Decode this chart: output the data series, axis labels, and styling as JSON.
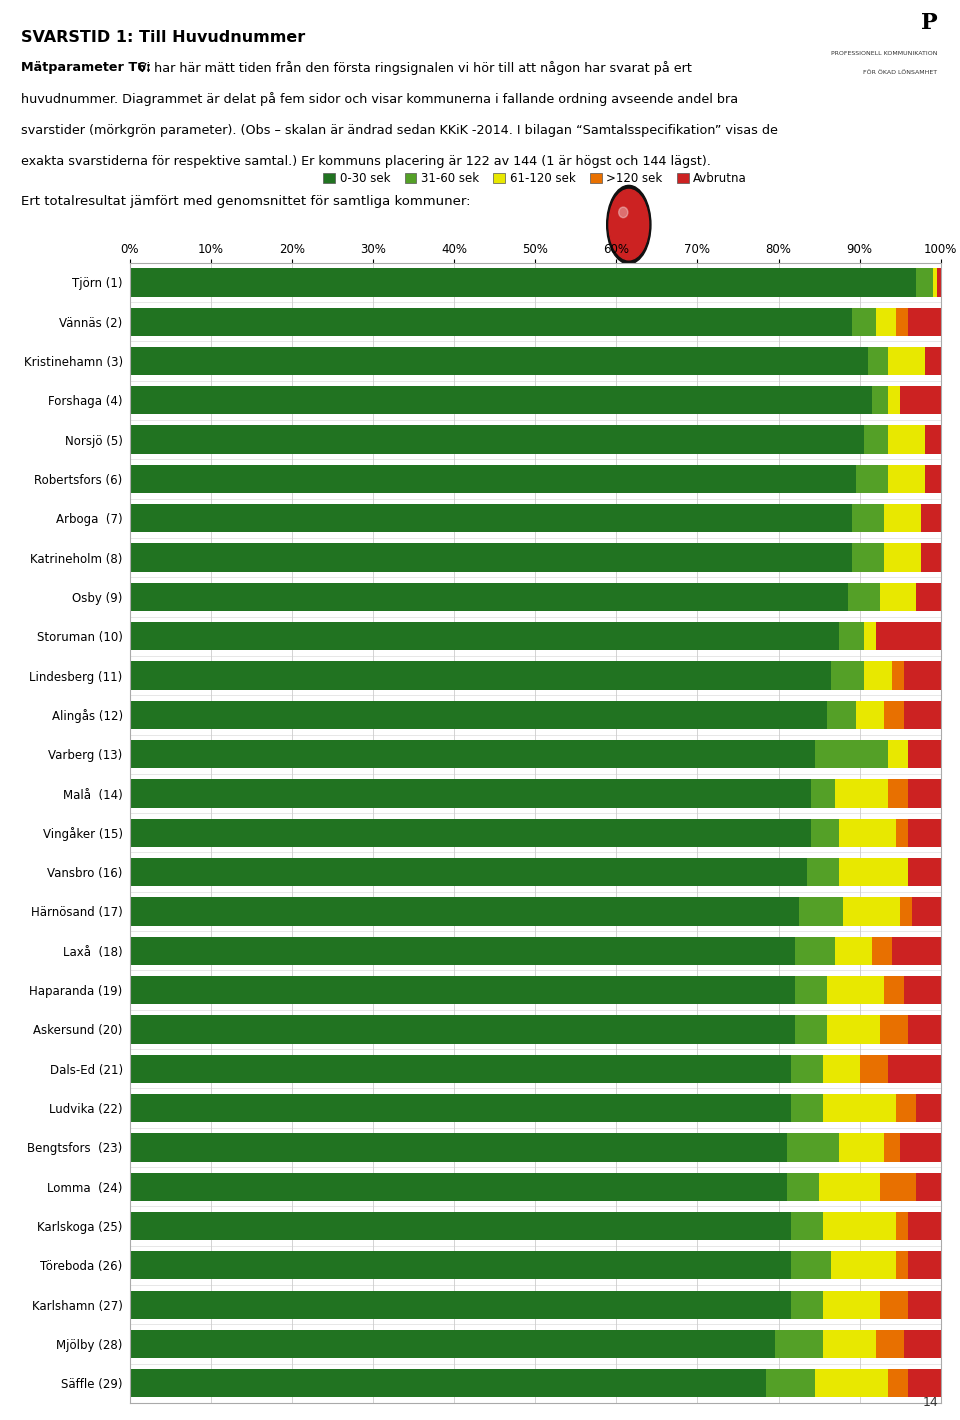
{
  "title": "SVARSTID 1: Till Huvudnummer",
  "bold_prefix": "Mätparameter T6:",
  "header_line1_rest": " Vi har här mätt tiden från den första ringsignalen vi hör till att någon har svarat på ert",
  "header_line2": "huvudnummer. Diagrammet är delat på fem sidor och visar kommunerna i fallande ordning avseende andel bra",
  "header_line3": "svarstider (mörkgrön parameter). (Obs – skalan är ändrad sedan KKiK -2014. I bilagan “Samtalsspecifikation” visas de",
  "header_line4": "exakta svarstiderna för respektive samtal.) Er kommuns placering är 122 av 144 (1 är högst och 144 lägst).",
  "footer_text": "Ert totalresultat jämfört med genomsnittet för samtliga kommuner:",
  "page_number": "14",
  "colors": {
    "dark_green": "#217321",
    "light_green": "#54A027",
    "yellow": "#E8E800",
    "orange": "#E87000",
    "red": "#CC2222",
    "bg": "#FFFFFF",
    "grid": "#CCCCCC",
    "border": "#999999"
  },
  "legend_labels": [
    "0-30 sek",
    "31-60 sek",
    "61-120 sek",
    ">120 sek",
    "Avbrutna"
  ],
  "categories": [
    "Tjörn (1)",
    "Vännäs (2)",
    "Kristinehamn (3)",
    "Forshaga (4)",
    "Norsjö (5)",
    "Robertsfors (6)",
    "Arboga  (7)",
    "Katrineholm (8)",
    "Osby (9)",
    "Storuman (10)",
    "Lindesberg (11)",
    "Alingås (12)",
    "Varberg (13)",
    "Malå  (14)",
    "Vingåker (15)",
    "Vansbro (16)",
    "Härnösand (17)",
    "Laxå  (18)",
    "Haparanda (19)",
    "Askersund (20)",
    "Dals-Ed (21)",
    "Ludvika (22)",
    "Bengtsfors  (23)",
    "Lomma  (24)",
    "Karlskoga (25)",
    "Töreboda (26)",
    "Karlshamn (27)",
    "Mjölby (28)",
    "Säffle (29)"
  ],
  "data": [
    [
      97.0,
      2.0,
      0.5,
      0.0,
      0.5
    ],
    [
      89.0,
      3.0,
      2.5,
      1.5,
      4.0
    ],
    [
      91.0,
      2.5,
      4.5,
      0.0,
      2.0
    ],
    [
      91.5,
      2.0,
      1.5,
      0.0,
      5.0
    ],
    [
      90.5,
      3.0,
      4.5,
      0.0,
      2.0
    ],
    [
      89.5,
      4.0,
      4.5,
      0.0,
      2.0
    ],
    [
      89.0,
      4.0,
      4.5,
      0.0,
      2.5
    ],
    [
      89.0,
      4.0,
      4.5,
      0.0,
      2.5
    ],
    [
      88.5,
      4.0,
      4.5,
      0.0,
      3.0
    ],
    [
      87.5,
      3.0,
      1.5,
      0.0,
      8.0
    ],
    [
      86.5,
      4.0,
      3.5,
      1.5,
      4.5
    ],
    [
      86.0,
      3.5,
      3.5,
      2.5,
      4.5
    ],
    [
      84.5,
      9.0,
      2.5,
      0.0,
      4.0
    ],
    [
      84.0,
      3.0,
      6.5,
      2.5,
      4.0
    ],
    [
      84.0,
      3.5,
      7.0,
      1.5,
      4.0
    ],
    [
      83.5,
      4.0,
      8.5,
      0.0,
      4.0
    ],
    [
      82.5,
      5.5,
      7.0,
      1.5,
      3.5
    ],
    [
      82.0,
      5.0,
      4.5,
      2.5,
      6.0
    ],
    [
      82.0,
      4.0,
      7.0,
      2.5,
      4.5
    ],
    [
      82.0,
      4.0,
      6.5,
      3.5,
      4.0
    ],
    [
      81.5,
      4.0,
      4.5,
      3.5,
      6.5
    ],
    [
      81.5,
      4.0,
      9.0,
      2.5,
      3.0
    ],
    [
      81.0,
      6.5,
      5.5,
      2.0,
      5.0
    ],
    [
      81.0,
      4.0,
      7.5,
      4.5,
      3.0
    ],
    [
      81.5,
      4.0,
      9.0,
      1.5,
      4.0
    ],
    [
      81.5,
      5.0,
      8.0,
      1.5,
      4.0
    ],
    [
      81.5,
      4.0,
      7.0,
      3.5,
      4.0
    ],
    [
      79.5,
      6.0,
      6.5,
      3.5,
      4.5
    ],
    [
      78.5,
      6.0,
      9.0,
      2.5,
      4.0
    ]
  ]
}
